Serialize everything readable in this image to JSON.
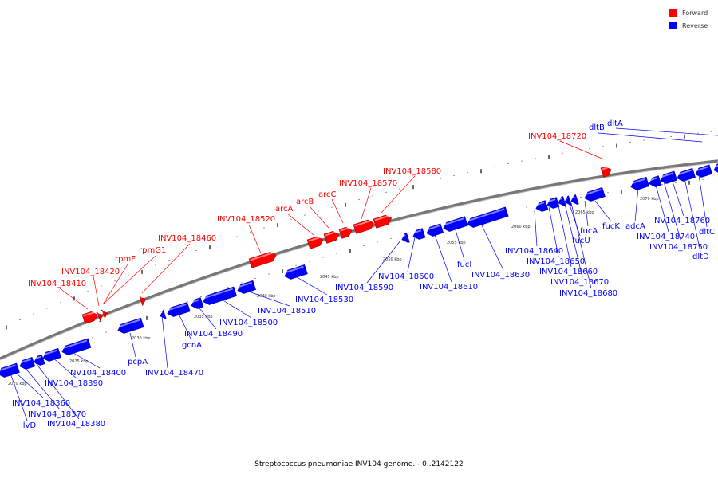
{
  "caption": "Streptococcus pneumoniae INV104 genome. - 0..2142122",
  "colors": {
    "forward": "#ff0000",
    "reverse": "#0000ff",
    "backbone": "#888888",
    "tick": "#000000"
  },
  "legend": [
    {
      "label": "Forward",
      "color": "#ff0000"
    },
    {
      "label": "Reverse",
      "color": "#0000ff"
    }
  ],
  "scale_labels": [
    "2020 kbp",
    "2025 kbp",
    "2030 kbp",
    "2035 kbp",
    "2040 kbp",
    "2045 kbp",
    "2050 kbp",
    "2055 kbp",
    "2060 kbp",
    "2065 kbp",
    "2070 kbp"
  ],
  "forward_labels": [
    "INV104_18410",
    "INV104_18420",
    "rpmF",
    "rpmG1",
    "INV104_18460",
    "INV104_18520",
    "arcA",
    "arcB",
    "arcC",
    "INV104_18570",
    "INV104_18580",
    "INV104_18720"
  ],
  "reverse_labels": [
    "INV104_18360",
    "INV104_18370",
    "INV104_18380",
    "ilvD",
    "INV104_18390",
    "INV104_18400",
    "pcpA",
    "INV104_18470",
    "gcnA",
    "INV104_18490",
    "INV104_18500",
    "INV104_18510",
    "INV104_18530",
    "INV104_18590",
    "INV104_18600",
    "INV104_18610",
    "fucI",
    "INV104_18630",
    "INV104_18640",
    "INV104_18650",
    "INV104_18660",
    "INV104_18670",
    "INV104_18680",
    "fucU",
    "fucA",
    "fucK",
    "adcA",
    "INV104_18740",
    "INV104_18750",
    "INV104_18760",
    "dltD",
    "dltC",
    "dltB",
    "dltA"
  ]
}
